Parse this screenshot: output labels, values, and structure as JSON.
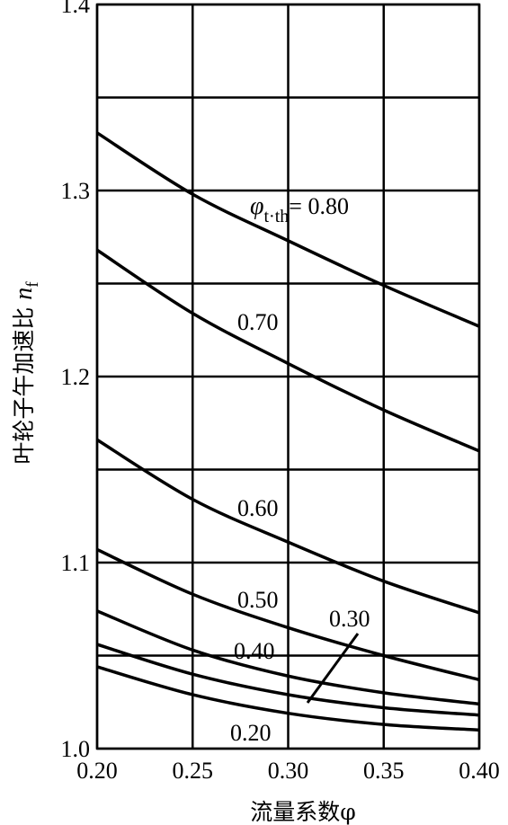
{
  "chart_data": {
    "type": "line",
    "xlabel": "流量系数φ",
    "ylabel": "叶轮子午加速比n_f",
    "xlim": [
      0.2,
      0.4
    ],
    "ylim": [
      1.0,
      1.4
    ],
    "x_ticks": [
      "0.20",
      "0.25",
      "0.30",
      "0.35",
      "0.40"
    ],
    "y_ticks": [
      "1.0",
      "1.1",
      "1.2",
      "1.3",
      "1.4"
    ],
    "grid": true,
    "series": [
      {
        "name": "0.80",
        "x": [
          0.2,
          0.25,
          0.3,
          0.35,
          0.4
        ],
        "y": [
          1.331,
          1.298,
          1.273,
          1.249,
          1.227
        ]
      },
      {
        "name": "0.70",
        "x": [
          0.2,
          0.25,
          0.3,
          0.35,
          0.4
        ],
        "y": [
          1.268,
          1.234,
          1.207,
          1.182,
          1.16
        ]
      },
      {
        "name": "0.60",
        "x": [
          0.2,
          0.25,
          0.3,
          0.35,
          0.4
        ],
        "y": [
          1.166,
          1.134,
          1.111,
          1.09,
          1.073
        ]
      },
      {
        "name": "0.50",
        "x": [
          0.2,
          0.25,
          0.3,
          0.35,
          0.4
        ],
        "y": [
          1.107,
          1.083,
          1.065,
          1.05,
          1.037
        ]
      },
      {
        "name": "0.40",
        "x": [
          0.2,
          0.25,
          0.3,
          0.35,
          0.4
        ],
        "y": [
          1.074,
          1.053,
          1.039,
          1.03,
          1.024
        ]
      },
      {
        "name": "0.30",
        "x": [
          0.2,
          0.25,
          0.3,
          0.35,
          0.4
        ],
        "y": [
          1.056,
          1.04,
          1.029,
          1.022,
          1.018
        ]
      },
      {
        "name": "0.20",
        "x": [
          0.2,
          0.25,
          0.3,
          0.35,
          0.4
        ],
        "y": [
          1.044,
          1.029,
          1.019,
          1.013,
          1.01
        ]
      }
    ],
    "curve_labels": [
      {
        "series": "0.80",
        "prefix": "φ",
        "subscript": "t·th",
        "text": "= 0.80"
      },
      {
        "series": "0.70",
        "text": "0.70"
      },
      {
        "series": "0.60",
        "text": "0.60"
      },
      {
        "series": "0.50",
        "text": "0.50"
      },
      {
        "series": "0.40",
        "text": "0.40"
      },
      {
        "series": "0.30",
        "text": "0.30"
      },
      {
        "series": "0.20",
        "text": "0.20"
      }
    ]
  }
}
